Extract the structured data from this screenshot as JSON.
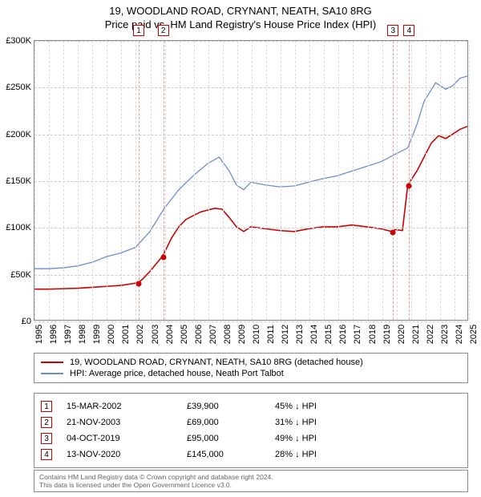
{
  "title": {
    "line1": "19, WOODLAND ROAD, CRYNANT, NEATH, SA10 8RG",
    "line2": "Price paid vs. HM Land Registry's House Price Index (HPI)"
  },
  "chart": {
    "type": "line",
    "background_color": "#ffffff",
    "grid_color": "#dddddd",
    "x_min_year": 1995,
    "x_max_year": 2025,
    "y_min": 0,
    "y_max": 300000,
    "y_tick_step": 50000,
    "y_tick_labels": [
      "£0",
      "£50K",
      "£100K",
      "£150K",
      "£200K",
      "£250K",
      "£300K"
    ],
    "x_ticks": [
      1995,
      1996,
      1997,
      1998,
      1999,
      2000,
      2001,
      2002,
      2003,
      2004,
      2005,
      2006,
      2007,
      2008,
      2009,
      2010,
      2011,
      2012,
      2013,
      2014,
      2015,
      2016,
      2017,
      2018,
      2019,
      2020,
      2021,
      2022,
      2023,
      2024,
      2025
    ],
    "series": [
      {
        "name": "price_paid",
        "color": "#cc0000",
        "width": 1.6,
        "points": [
          [
            1995.0,
            33000
          ],
          [
            1996.0,
            33000
          ],
          [
            1997.0,
            33500
          ],
          [
            1998.0,
            34000
          ],
          [
            1999.0,
            35000
          ],
          [
            2000.0,
            36000
          ],
          [
            2001.0,
            37000
          ],
          [
            2002.2,
            39900
          ],
          [
            2002.5,
            44000
          ],
          [
            2003.0,
            52000
          ],
          [
            2003.9,
            69000
          ],
          [
            2004.5,
            88000
          ],
          [
            2005.0,
            100000
          ],
          [
            2005.5,
            108000
          ],
          [
            2006.0,
            112000
          ],
          [
            2006.5,
            116000
          ],
          [
            2007.0,
            118000
          ],
          [
            2007.5,
            120000
          ],
          [
            2008.0,
            119000
          ],
          [
            2008.5,
            110000
          ],
          [
            2009.0,
            100000
          ],
          [
            2009.5,
            95000
          ],
          [
            2010.0,
            100000
          ],
          [
            2011.0,
            98000
          ],
          [
            2012.0,
            96000
          ],
          [
            2013.0,
            95000
          ],
          [
            2014.0,
            98000
          ],
          [
            2015.0,
            100000
          ],
          [
            2016.0,
            100000
          ],
          [
            2017.0,
            102000
          ],
          [
            2018.0,
            100000
          ],
          [
            2019.0,
            98000
          ],
          [
            2019.76,
            95000
          ],
          [
            2020.0,
            97000
          ],
          [
            2020.5,
            96000
          ],
          [
            2020.87,
            145000
          ],
          [
            2021.5,
            160000
          ],
          [
            2022.0,
            175000
          ],
          [
            2022.5,
            190000
          ],
          [
            2023.0,
            198000
          ],
          [
            2023.5,
            195000
          ],
          [
            2024.0,
            200000
          ],
          [
            2024.5,
            205000
          ],
          [
            2025.0,
            208000
          ]
        ]
      },
      {
        "name": "hpi",
        "color": "#6a8fd0",
        "width": 1.3,
        "points": [
          [
            1995.0,
            55000
          ],
          [
            1996.0,
            55000
          ],
          [
            1997.0,
            56000
          ],
          [
            1998.0,
            58000
          ],
          [
            1999.0,
            62000
          ],
          [
            2000.0,
            68000
          ],
          [
            2001.0,
            72000
          ],
          [
            2002.0,
            78000
          ],
          [
            2003.0,
            95000
          ],
          [
            2004.0,
            120000
          ],
          [
            2005.0,
            140000
          ],
          [
            2006.0,
            155000
          ],
          [
            2007.0,
            168000
          ],
          [
            2007.8,
            175000
          ],
          [
            2008.5,
            160000
          ],
          [
            2009.0,
            145000
          ],
          [
            2009.5,
            140000
          ],
          [
            2010.0,
            148000
          ],
          [
            2011.0,
            145000
          ],
          [
            2012.0,
            143000
          ],
          [
            2013.0,
            144000
          ],
          [
            2014.0,
            148000
          ],
          [
            2015.0,
            152000
          ],
          [
            2016.0,
            155000
          ],
          [
            2017.0,
            160000
          ],
          [
            2018.0,
            165000
          ],
          [
            2019.0,
            170000
          ],
          [
            2020.0,
            178000
          ],
          [
            2020.87,
            185000
          ],
          [
            2021.5,
            210000
          ],
          [
            2022.0,
            235000
          ],
          [
            2022.8,
            255000
          ],
          [
            2023.5,
            248000
          ],
          [
            2024.0,
            252000
          ],
          [
            2024.5,
            260000
          ],
          [
            2025.0,
            262000
          ]
        ]
      }
    ],
    "markers": [
      {
        "num": "1",
        "year": 2002.2,
        "price": 39900
      },
      {
        "num": "2",
        "year": 2003.89,
        "price": 69000
      },
      {
        "num": "3",
        "year": 2019.76,
        "price": 95000
      },
      {
        "num": "4",
        "year": 2020.87,
        "price": 145000
      }
    ],
    "marker_line_color": "#e9a0a0",
    "marker_box_border": "#cc0000",
    "point_dot_color": "#cc0000"
  },
  "legend": {
    "items": [
      {
        "color": "#cc0000",
        "label": "19, WOODLAND ROAD, CRYNANT, NEATH, SA10 8RG (detached house)"
      },
      {
        "color": "#6a8fd0",
        "label": "HPI: Average price, detached house, Neath Port Talbot"
      }
    ]
  },
  "records": {
    "arrow": "↓",
    "suffix": "HPI",
    "rows": [
      {
        "num": "1",
        "date": "15-MAR-2002",
        "price": "£39,900",
        "diff": "45%"
      },
      {
        "num": "2",
        "date": "21-NOV-2003",
        "price": "£69,000",
        "diff": "31%"
      },
      {
        "num": "3",
        "date": "04-OCT-2019",
        "price": "£95,000",
        "diff": "49%"
      },
      {
        "num": "4",
        "date": "13-NOV-2020",
        "price": "£145,000",
        "diff": "28%"
      }
    ]
  },
  "footer": {
    "line1": "Contains HM Land Registry data © Crown copyright and database right 2024.",
    "line2": "This data is licensed under the Open Government Licence v3.0."
  }
}
